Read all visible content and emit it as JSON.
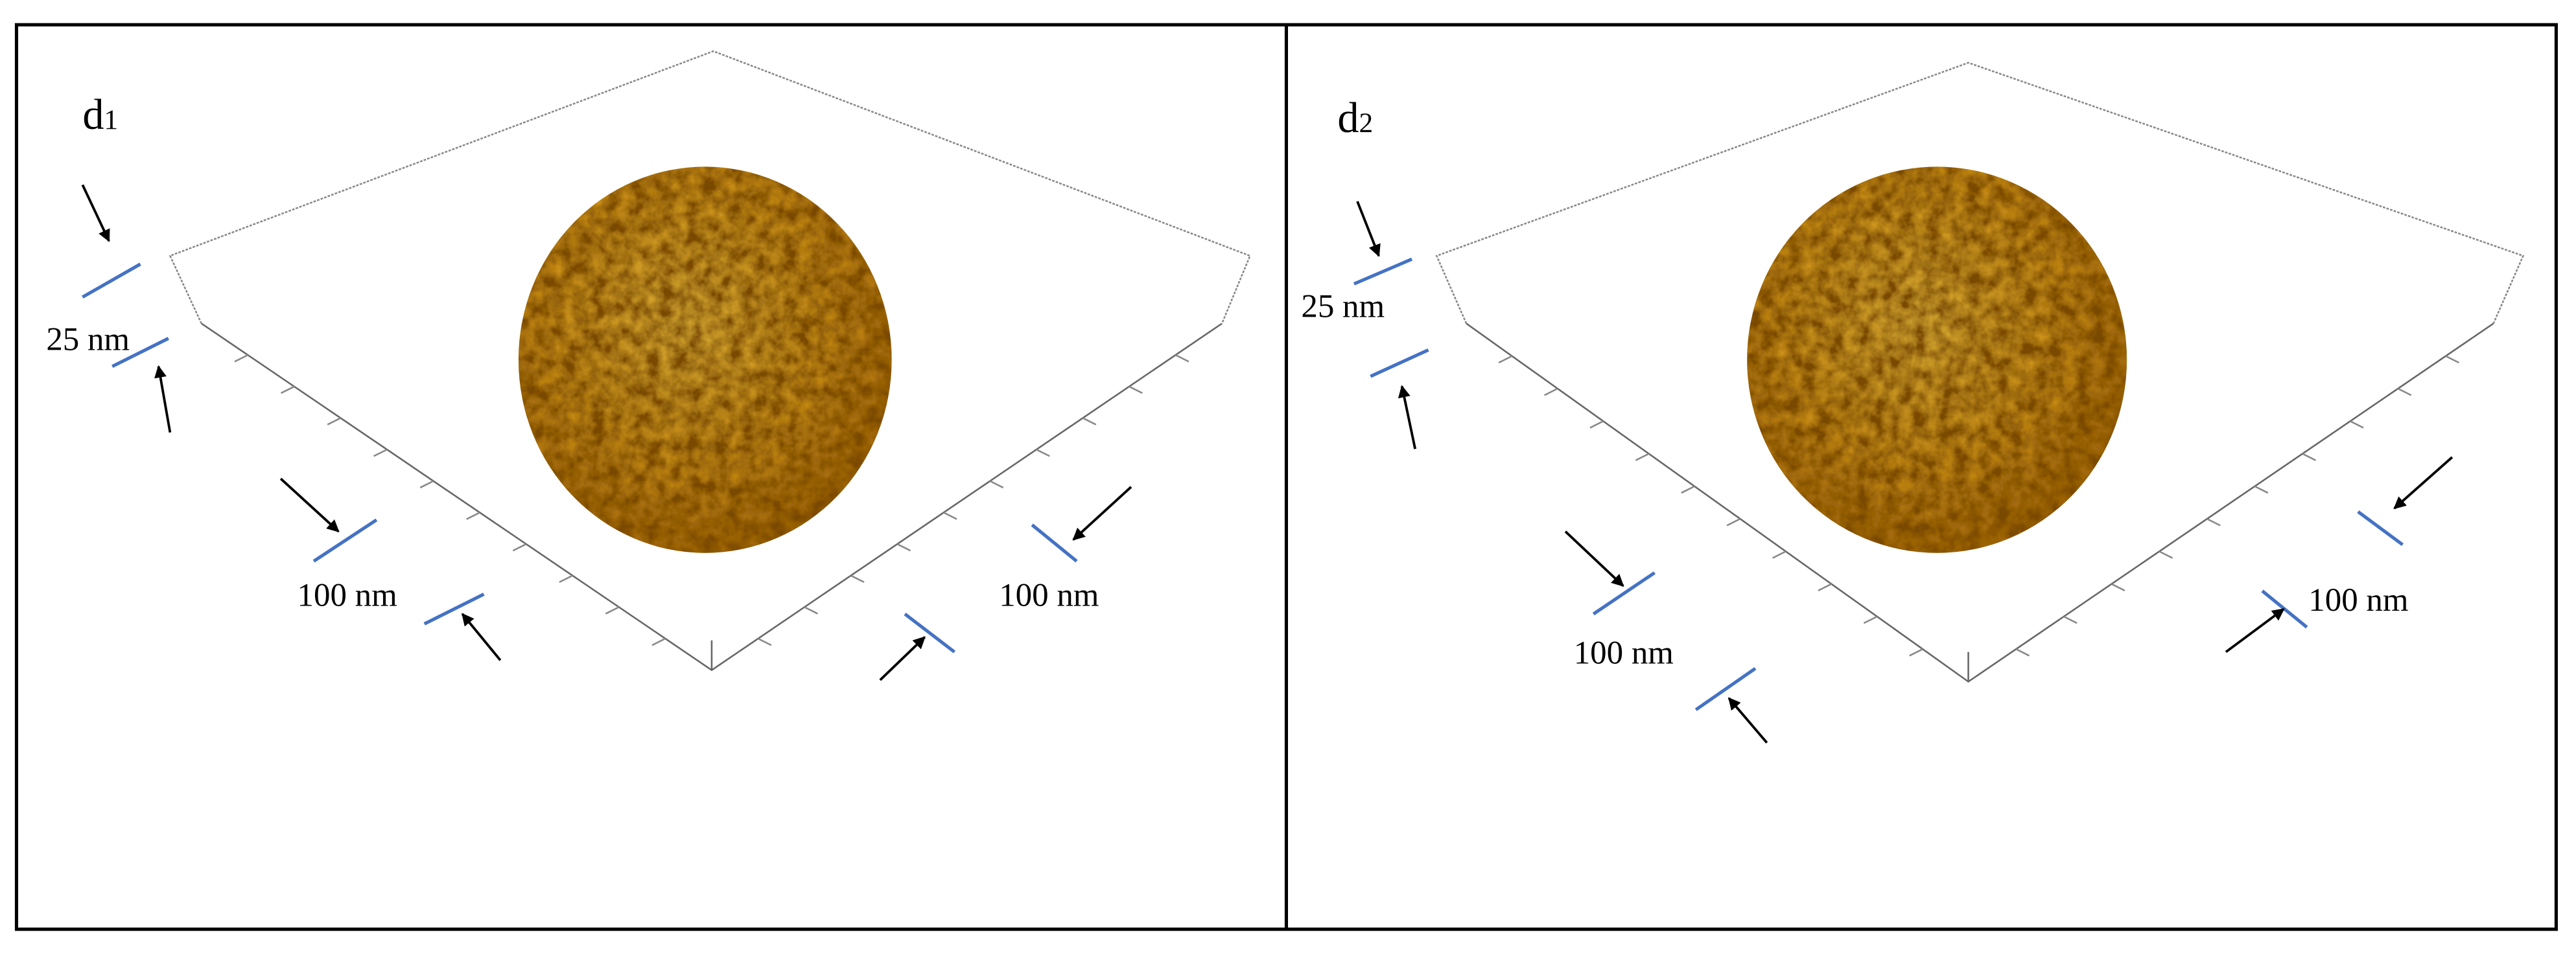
{
  "panels": [
    {
      "label_main": "d",
      "label_sub": "1",
      "z_scale": "25 nm",
      "x_scale": "100 nm",
      "y_scale": "100 nm"
    },
    {
      "label_main": "d",
      "label_sub": "2",
      "z_scale": "25 nm",
      "x_scale": "100 nm",
      "y_scale": "100 nm"
    }
  ],
  "colors": {
    "scale_line": "#4472c4",
    "surface_light": "#f2c23a",
    "surface_dark": "#a86a08",
    "frame": "#000000"
  }
}
